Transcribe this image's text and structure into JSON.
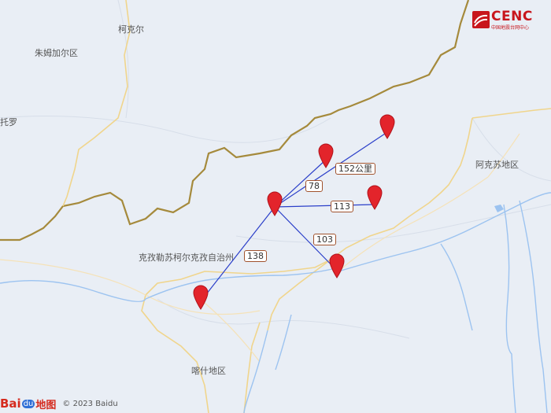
{
  "map": {
    "places": {
      "kekeer": "柯克尔",
      "zhu": "朱姆加尔区",
      "tuoluo": "托罗",
      "akesu": "阿克苏地区",
      "kezhou": "克孜勒苏柯尔克孜自治州",
      "kashi": "喀什地区"
    },
    "distances": {
      "d152": "152公里",
      "d78": "78",
      "d113": "113",
      "d103": "103",
      "d138": "138"
    },
    "colors": {
      "line": "#2b3fc9",
      "pin": "#e3242b",
      "border": "#a58a3c",
      "water": "#9cc3f0",
      "road": "#f5d79a"
    }
  },
  "branding": {
    "cenc": "CENC",
    "cenc_sub": "中国地震台网中心",
    "baidu_bai": "Bai",
    "baidu_du": "du",
    "baidu_map": "地图",
    "copyright": "© 2023 Baidu"
  }
}
